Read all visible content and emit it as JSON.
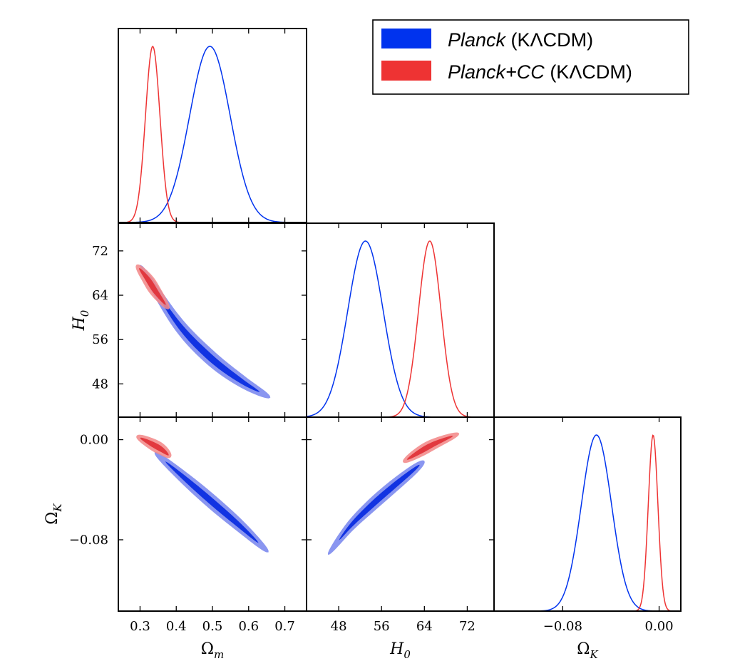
{
  "chart_data": {
    "type": "triangle-corner-plot",
    "parameters": [
      {
        "key": "omega_m",
        "symbol": "Ω",
        "sub": "m",
        "range": [
          0.24,
          0.76
        ],
        "ticks": [
          0.3,
          0.4,
          0.5,
          0.6,
          0.7
        ],
        "tick_labels": [
          "0.3",
          "0.4",
          "0.5",
          "0.6",
          "0.7"
        ]
      },
      {
        "key": "h0",
        "symbol": "H",
        "sub": "0",
        "range": [
          42,
          77
        ],
        "ticks": [
          48,
          56,
          64,
          72
        ],
        "tick_labels": [
          "48",
          "56",
          "64",
          "72"
        ]
      },
      {
        "key": "omega_k",
        "symbol": "Ω",
        "sub": "K",
        "range": [
          -0.137,
          0.018
        ],
        "ticks": [
          -0.08,
          0.0
        ],
        "tick_labels": [
          "−0.08",
          "0.00"
        ]
      }
    ],
    "legend": {
      "placement": "top-right",
      "entries": [
        {
          "italic": "Planck",
          "rest": " (KΛCDM)",
          "color": "#0033ee"
        },
        {
          "italic": "Planck+CC",
          "rest": " (KΛCDM)",
          "color": "#ee3333"
        }
      ]
    },
    "series": [
      {
        "name": "Planck (KΛCDM)",
        "color": "#0033ee",
        "contour_colors": [
          "#7a88ee",
          "#0b2de0"
        ],
        "marginals": {
          "omega_m": {
            "mean": 0.493,
            "sigma": 0.056
          },
          "h0": {
            "mean": 53.0,
            "sigma": 3.3
          },
          "omega_k": {
            "mean": -0.052,
            "sigma": 0.0125
          }
        },
        "contours": {
          "h0_vs_omega_m": {
            "points": [
              [
                0.3,
                69.5
              ],
              [
                0.4,
                59.3
              ],
              [
                0.49,
                53.0
              ],
              [
                0.58,
                48.5
              ],
              [
                0.66,
                45.5
              ]
            ],
            "width_68": 0.6,
            "width_95": 1.3
          },
          "omega_k_vs_omega_m": {
            "points": [
              [
                0.34,
                -0.01
              ],
              [
                0.42,
                -0.03
              ],
              [
                0.5,
                -0.05
              ],
              [
                0.58,
                -0.07
              ],
              [
                0.655,
                -0.09
              ]
            ],
            "width_68": 0.0025,
            "width_95": 0.0055
          },
          "omega_k_vs_h0": {
            "points": [
              [
                46.0,
                -0.092
              ],
              [
                50.0,
                -0.07
              ],
              [
                54.0,
                -0.053
              ],
              [
                58.0,
                -0.038
              ],
              [
                62.0,
                -0.024
              ],
              [
                64.0,
                -0.017
              ]
            ],
            "width_68": 0.0023,
            "width_95": 0.005
          }
        }
      },
      {
        "name": "Planck+CC (KΛCDM)",
        "color": "#ee3333",
        "contour_colors": [
          "#f28a8a",
          "#e0343a"
        ],
        "marginals": {
          "omega_m": {
            "mean": 0.335,
            "sigma": 0.02
          },
          "h0": {
            "mean": 65.0,
            "sigma": 2.1
          },
          "omega_k": {
            "mean": -0.005,
            "sigma": 0.004
          }
        },
        "contours": {
          "h0_vs_omega_m": {
            "points": [
              [
                0.29,
                69.5
              ],
              [
                0.32,
                67.0
              ],
              [
                0.345,
                64.5
              ],
              [
                0.38,
                61.5
              ]
            ],
            "width_68": 0.5,
            "width_95": 1.1
          },
          "omega_k_vs_omega_m": {
            "points": [
              [
                0.29,
                0.003
              ],
              [
                0.33,
                -0.003
              ],
              [
                0.36,
                -0.008
              ],
              [
                0.385,
                -0.014
              ]
            ],
            "width_68": 0.0022,
            "width_95": 0.0048
          },
          "omega_k_vs_h0": {
            "points": [
              [
                60.0,
                -0.018
              ],
              [
                63.0,
                -0.01
              ],
              [
                66.0,
                -0.003
              ],
              [
                70.5,
                0.005
              ]
            ],
            "width_68": 0.0021,
            "width_95": 0.0045
          }
        }
      }
    ]
  }
}
